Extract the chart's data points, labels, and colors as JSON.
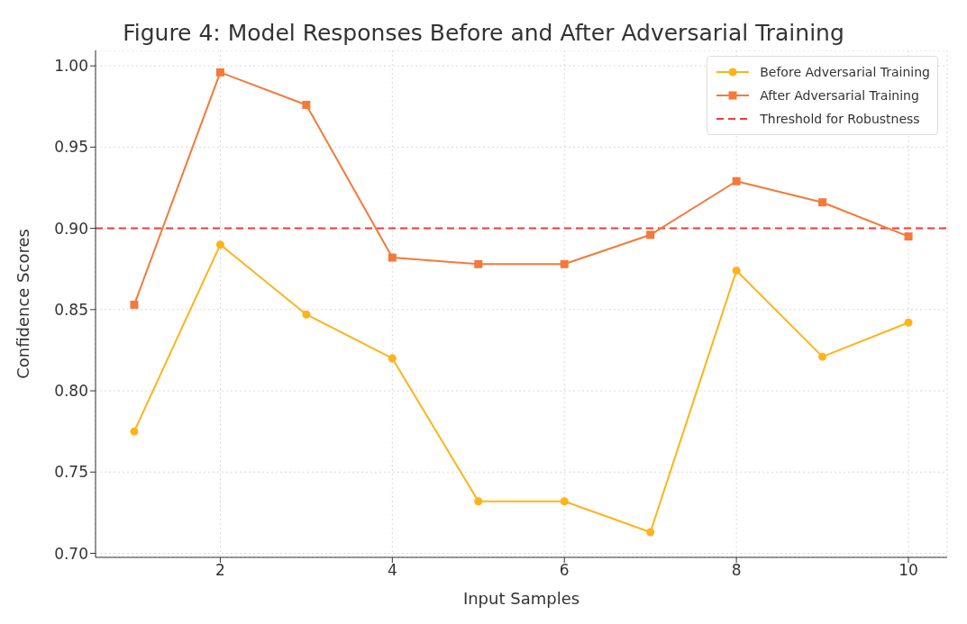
{
  "chart_data": {
    "type": "line",
    "title": "Figure 4: Model Responses Before and After Adversarial Training",
    "xlabel": "Input Samples",
    "ylabel": "Confidence Scores",
    "x": [
      1,
      2,
      3,
      4,
      5,
      6,
      7,
      8,
      9,
      10
    ],
    "series": [
      {
        "name": "Before Adversarial Training",
        "color": "#ffb319",
        "marker": "circle",
        "values": [
          0.775,
          0.89,
          0.847,
          0.82,
          0.732,
          0.732,
          0.713,
          0.874,
          0.821,
          0.842
        ]
      },
      {
        "name": "After Adversarial Training",
        "color": "#f5793a",
        "marker": "square",
        "values": [
          0.853,
          0.996,
          0.976,
          0.882,
          0.878,
          0.878,
          0.896,
          0.929,
          0.916,
          0.895
        ]
      }
    ],
    "ref_lines": [
      {
        "axis": "y",
        "value": 0.9,
        "label": "Threshold for Robustness",
        "color": "#f03c3c",
        "line_style": "dashed"
      }
    ],
    "xlim": [
      0.55,
      10.45
    ],
    "xticks": [
      2,
      4,
      6,
      8,
      10
    ],
    "ylim": [
      0.6975,
      1.0095
    ],
    "yticks": [
      {
        "value": 0.7,
        "label": "0.70"
      },
      0.75,
      {
        "value": 0.8,
        "label": "0.80"
      },
      0.85,
      {
        "value": 0.9,
        "label": "0.90"
      },
      0.95,
      {
        "value": 1,
        "label": "1.00"
      }
    ],
    "grid": true,
    "legend": "top right",
    "line_style": "solid"
  }
}
